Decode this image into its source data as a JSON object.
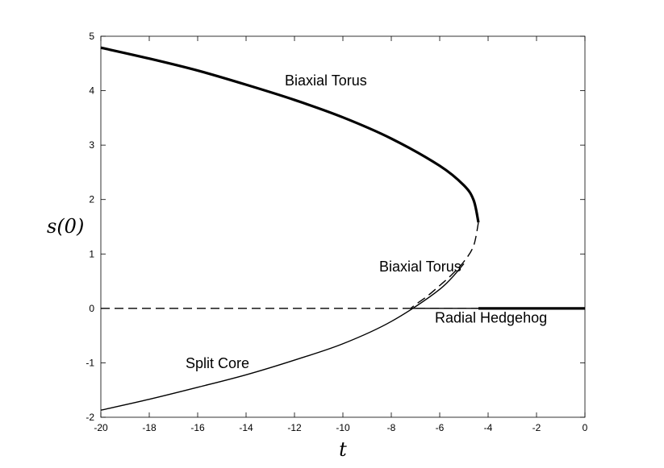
{
  "chart_data": {
    "type": "line",
    "xlabel": "t",
    "ylabel": "s(0)",
    "xlim": [
      -20,
      0
    ],
    "ylim": [
      -2,
      5
    ],
    "xticks": [
      -20,
      -18,
      -16,
      -14,
      -12,
      -10,
      -8,
      -6,
      -4,
      -2,
      0
    ],
    "yticks": [
      -2,
      -1,
      0,
      1,
      2,
      3,
      4,
      5
    ],
    "grid": false,
    "series": [
      {
        "key": "biaxial-torus-stable",
        "style": "thick-solid",
        "x": [
          -20,
          -18,
          -16,
          -14,
          -12,
          -10,
          -8,
          -6,
          -5,
          -4.6,
          -4.4
        ],
        "y": [
          4.79,
          4.59,
          4.37,
          4.11,
          3.83,
          3.51,
          3.12,
          2.62,
          2.26,
          1.99,
          1.58
        ]
      },
      {
        "key": "biaxial-torus-unstable",
        "style": "dashed",
        "x": [
          -4.4,
          -4.6,
          -5,
          -5.5,
          -6,
          -6.5,
          -7,
          -7.2
        ],
        "y": [
          1.58,
          1.15,
          0.86,
          0.62,
          0.42,
          0.23,
          0.07,
          0.0
        ]
      },
      {
        "key": "radial-hedgehog-unstable",
        "style": "dashed",
        "x": [
          -20,
          -4.4
        ],
        "y": [
          0,
          0
        ]
      },
      {
        "key": "radial-hedgehog-stable",
        "style": "thin-solid",
        "x": [
          -7.2,
          -4.4
        ],
        "y": [
          0,
          0
        ]
      },
      {
        "key": "radial-hedgehog-stable-thick",
        "style": "thick-solid",
        "x": [
          -4.4,
          0
        ],
        "y": [
          0,
          0
        ]
      },
      {
        "key": "split-core",
        "style": "thin-solid",
        "x": [
          -20,
          -18,
          -16,
          -14,
          -12,
          -10,
          -8,
          -6,
          -5
        ],
        "y": [
          -1.87,
          -1.67,
          -1.45,
          -1.22,
          -0.95,
          -0.65,
          -0.24,
          0.35,
          0.82
        ]
      }
    ],
    "annotations": [
      {
        "text": "Biaxial Torus",
        "x": -12.4,
        "y": 4.1
      },
      {
        "text": "Biaxial Torus",
        "x": -8.5,
        "y": 0.68
      },
      {
        "text": "Radial Hedgehog",
        "x": -6.2,
        "y": -0.26
      },
      {
        "text": "Split Core",
        "x": -16.5,
        "y": -1.1
      }
    ]
  }
}
